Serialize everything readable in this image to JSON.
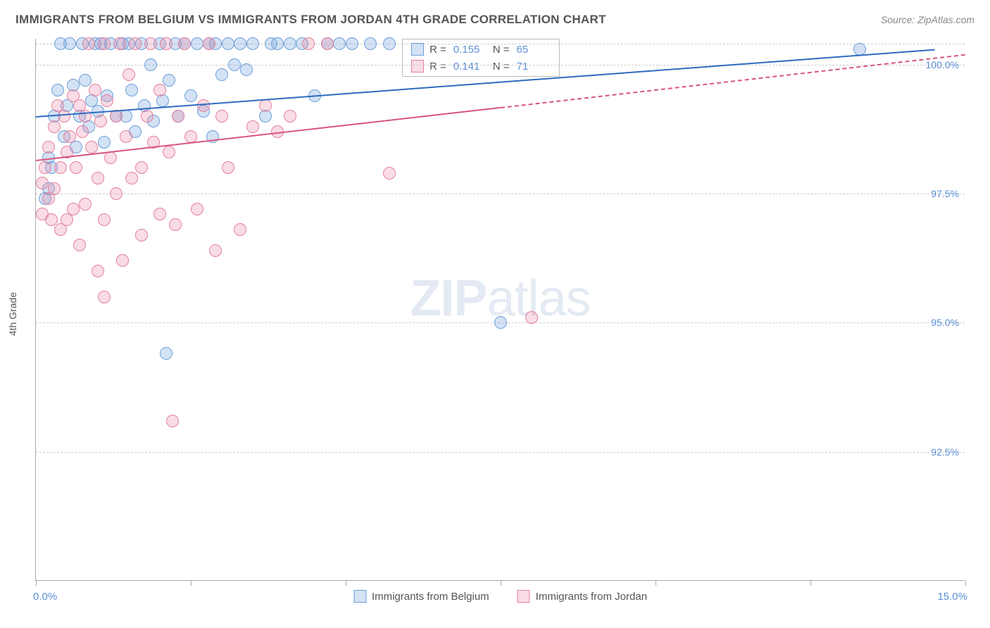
{
  "header": {
    "title": "IMMIGRANTS FROM BELGIUM VS IMMIGRANTS FROM JORDAN 4TH GRADE CORRELATION CHART",
    "source": "Source: ZipAtlas.com"
  },
  "chart": {
    "type": "scatter",
    "ylabel": "4th Grade",
    "watermark": "ZIPatlas",
    "xlim": [
      0.0,
      15.0
    ],
    "ylim": [
      90.0,
      100.5
    ],
    "xtick_positions": [
      0.0,
      2.5,
      5.0,
      7.5,
      10.0,
      12.5,
      15.0
    ],
    "xlim_labels": {
      "min": "0.0%",
      "max": "15.0%"
    },
    "yticks": [
      {
        "v": 92.5,
        "label": "92.5%"
      },
      {
        "v": 95.0,
        "label": "95.0%"
      },
      {
        "v": 97.5,
        "label": "97.5%"
      },
      {
        "v": 100.0,
        "label": "100.0%"
      }
    ],
    "grid_top_v": 100.4,
    "background_color": "#ffffff",
    "grid_color": "#cccccc",
    "marker_radius": 9,
    "marker_stroke_width": 1.5,
    "series": [
      {
        "name": "Immigrants from Belgium",
        "color_fill": "rgba(109,158,217,0.30)",
        "color_stroke": "#6d9ed9",
        "line_color": "#2f6bc0",
        "R": "0.155",
        "N": "65",
        "trend": {
          "x1": 0.0,
          "y1": 99.0,
          "x2": 14.5,
          "y2": 100.3,
          "dashed_from_x": null
        },
        "points": [
          [
            0.15,
            97.4
          ],
          [
            0.2,
            97.6
          ],
          [
            0.2,
            98.2
          ],
          [
            0.25,
            98.0
          ],
          [
            0.3,
            99.0
          ],
          [
            0.35,
            99.5
          ],
          [
            0.4,
            100.4
          ],
          [
            0.45,
            98.6
          ],
          [
            0.5,
            99.2
          ],
          [
            0.55,
            100.4
          ],
          [
            0.6,
            99.6
          ],
          [
            0.65,
            98.4
          ],
          [
            0.7,
            99.0
          ],
          [
            0.75,
            100.4
          ],
          [
            0.8,
            99.7
          ],
          [
            0.85,
            98.8
          ],
          [
            0.9,
            99.3
          ],
          [
            0.95,
            100.4
          ],
          [
            1.0,
            99.1
          ],
          [
            1.05,
            100.4
          ],
          [
            1.1,
            98.5
          ],
          [
            1.15,
            99.4
          ],
          [
            1.2,
            100.4
          ],
          [
            1.3,
            99.0
          ],
          [
            1.4,
            100.4
          ],
          [
            1.45,
            99.0
          ],
          [
            1.5,
            100.4
          ],
          [
            1.55,
            99.5
          ],
          [
            1.6,
            98.7
          ],
          [
            1.7,
            100.4
          ],
          [
            1.75,
            99.2
          ],
          [
            1.85,
            100.0
          ],
          [
            1.9,
            98.9
          ],
          [
            2.0,
            100.4
          ],
          [
            2.05,
            99.3
          ],
          [
            2.15,
            99.7
          ],
          [
            2.25,
            100.4
          ],
          [
            2.3,
            99.0
          ],
          [
            2.4,
            100.4
          ],
          [
            2.5,
            99.4
          ],
          [
            2.6,
            100.4
          ],
          [
            2.7,
            99.1
          ],
          [
            2.8,
            100.4
          ],
          [
            2.85,
            98.6
          ],
          [
            2.9,
            100.4
          ],
          [
            3.0,
            99.8
          ],
          [
            3.1,
            100.4
          ],
          [
            3.2,
            100.0
          ],
          [
            3.3,
            100.4
          ],
          [
            3.4,
            99.9
          ],
          [
            3.5,
            100.4
          ],
          [
            3.7,
            99.0
          ],
          [
            3.8,
            100.4
          ],
          [
            3.9,
            100.4
          ],
          [
            4.1,
            100.4
          ],
          [
            4.3,
            100.4
          ],
          [
            4.5,
            99.4
          ],
          [
            4.7,
            100.4
          ],
          [
            4.9,
            100.4
          ],
          [
            5.1,
            100.4
          ],
          [
            5.4,
            100.4
          ],
          [
            5.7,
            100.4
          ],
          [
            7.5,
            95.0
          ],
          [
            2.1,
            94.4
          ],
          [
            13.3,
            100.3
          ]
        ]
      },
      {
        "name": "Immigrants from Jordan",
        "color_fill": "rgba(232,128,160,0.28)",
        "color_stroke": "#e4809f",
        "line_color": "#d9547e",
        "R": "0.141",
        "N": "71",
        "trend": {
          "x1": 0.0,
          "y1": 98.15,
          "x2": 15.0,
          "y2": 100.2,
          "dashed_from_x": 7.5
        },
        "points": [
          [
            0.1,
            97.1
          ],
          [
            0.1,
            97.7
          ],
          [
            0.15,
            98.0
          ],
          [
            0.2,
            97.4
          ],
          [
            0.2,
            98.4
          ],
          [
            0.25,
            97.0
          ],
          [
            0.3,
            98.8
          ],
          [
            0.3,
            97.6
          ],
          [
            0.35,
            99.2
          ],
          [
            0.4,
            98.0
          ],
          [
            0.4,
            96.8
          ],
          [
            0.45,
            99.0
          ],
          [
            0.5,
            98.3
          ],
          [
            0.5,
            97.0
          ],
          [
            0.55,
            98.6
          ],
          [
            0.6,
            99.4
          ],
          [
            0.6,
            97.2
          ],
          [
            0.65,
            98.0
          ],
          [
            0.7,
            99.2
          ],
          [
            0.7,
            96.5
          ],
          [
            0.75,
            98.7
          ],
          [
            0.8,
            99.0
          ],
          [
            0.8,
            97.3
          ],
          [
            0.85,
            100.4
          ],
          [
            0.9,
            98.4
          ],
          [
            0.95,
            99.5
          ],
          [
            1.0,
            97.8
          ],
          [
            1.0,
            96.0
          ],
          [
            1.05,
            98.9
          ],
          [
            1.1,
            100.4
          ],
          [
            1.1,
            97.0
          ],
          [
            1.15,
            99.3
          ],
          [
            1.2,
            98.2
          ],
          [
            1.3,
            99.0
          ],
          [
            1.3,
            97.5
          ],
          [
            1.35,
            100.4
          ],
          [
            1.4,
            96.2
          ],
          [
            1.45,
            98.6
          ],
          [
            1.5,
            99.8
          ],
          [
            1.55,
            97.8
          ],
          [
            1.6,
            100.4
          ],
          [
            1.7,
            98.0
          ],
          [
            1.7,
            96.7
          ],
          [
            1.8,
            99.0
          ],
          [
            1.85,
            100.4
          ],
          [
            1.9,
            98.5
          ],
          [
            2.0,
            97.1
          ],
          [
            2.0,
            99.5
          ],
          [
            2.1,
            100.4
          ],
          [
            2.15,
            98.3
          ],
          [
            2.25,
            96.9
          ],
          [
            2.3,
            99.0
          ],
          [
            2.4,
            100.4
          ],
          [
            2.5,
            98.6
          ],
          [
            2.6,
            97.2
          ],
          [
            2.7,
            99.2
          ],
          [
            2.8,
            100.4
          ],
          [
            2.9,
            96.4
          ],
          [
            3.0,
            99.0
          ],
          [
            3.1,
            98.0
          ],
          [
            3.3,
            96.8
          ],
          [
            3.5,
            98.8
          ],
          [
            3.7,
            99.2
          ],
          [
            3.9,
            98.7
          ],
          [
            4.1,
            99.0
          ],
          [
            4.4,
            100.4
          ],
          [
            4.7,
            100.4
          ],
          [
            5.7,
            97.9
          ],
          [
            2.2,
            93.1
          ],
          [
            1.1,
            95.5
          ],
          [
            8.0,
            95.1
          ]
        ]
      }
    ],
    "legend": {
      "items": [
        {
          "label": "Immigrants from Belgium",
          "fill": "rgba(109,158,217,0.30)",
          "stroke": "#6d9ed9"
        },
        {
          "label": "Immigrants from Jordan",
          "fill": "rgba(232,128,160,0.28)",
          "stroke": "#e4809f"
        }
      ]
    }
  }
}
